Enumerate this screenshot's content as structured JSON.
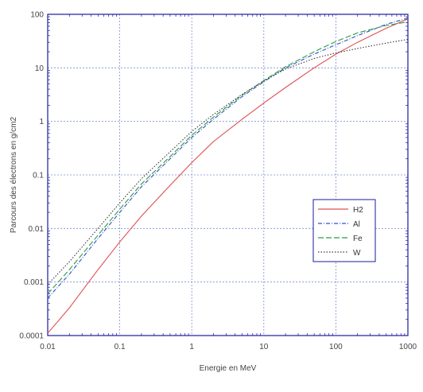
{
  "chart_data": {
    "type": "line",
    "title": "",
    "xlabel": "Energie en MeV",
    "ylabel": "Parcours des électrons en g/cm2",
    "xscale": "log",
    "yscale": "log",
    "xlim": [
      0.01,
      1000
    ],
    "ylim": [
      0.0001,
      100
    ],
    "x_tick_labels": [
      "0.01",
      "0.1",
      "1",
      "10",
      "100",
      "1000"
    ],
    "y_tick_labels": [
      "0.0001",
      "0.001",
      "0.01",
      "0.1",
      "1",
      "10",
      "100"
    ],
    "grid": true,
    "legend_position": "center-right",
    "series": [
      {
        "name": "H2",
        "color": "#e05050",
        "dash": "solid",
        "x": [
          0.01,
          0.02,
          0.05,
          0.1,
          0.2,
          0.5,
          1,
          2,
          5,
          10,
          20,
          50,
          100,
          200,
          500,
          1000
        ],
        "y": [
          0.00011,
          0.00033,
          0.0017,
          0.0056,
          0.017,
          0.064,
          0.17,
          0.42,
          1.1,
          2.2,
          4.3,
          10,
          18,
          30,
          55,
          82
        ]
      },
      {
        "name": "Al",
        "color": "#3050c8",
        "dash": "dashdot",
        "x": [
          0.01,
          0.02,
          0.05,
          0.1,
          0.2,
          0.5,
          1,
          2,
          5,
          10,
          20,
          50,
          100,
          200,
          500,
          1000
        ],
        "y": [
          0.0005,
          0.0014,
          0.0065,
          0.02,
          0.06,
          0.2,
          0.5,
          1.1,
          2.9,
          5.5,
          10,
          18,
          27,
          40,
          65,
          85
        ]
      },
      {
        "name": "Fe",
        "color": "#2a9a40",
        "dash": "longdash",
        "x": [
          0.01,
          0.02,
          0.05,
          0.1,
          0.2,
          0.5,
          1,
          2,
          5,
          10,
          20,
          50,
          100,
          200,
          500,
          1000
        ],
        "y": [
          0.0006,
          0.0017,
          0.0075,
          0.023,
          0.068,
          0.22,
          0.55,
          1.2,
          3.1,
          5.8,
          10.5,
          20,
          31,
          45,
          62,
          72
        ]
      },
      {
        "name": "W",
        "color": "#3a3a3a",
        "dash": "dotted",
        "x": [
          0.01,
          0.02,
          0.05,
          0.1,
          0.2,
          0.5,
          1,
          2,
          5,
          10,
          20,
          50,
          100,
          200,
          500,
          1000
        ],
        "y": [
          0.0009,
          0.0024,
          0.01,
          0.03,
          0.085,
          0.27,
          0.65,
          1.35,
          3.2,
          5.7,
          9.5,
          15,
          19,
          23,
          29,
          34
        ]
      }
    ]
  }
}
